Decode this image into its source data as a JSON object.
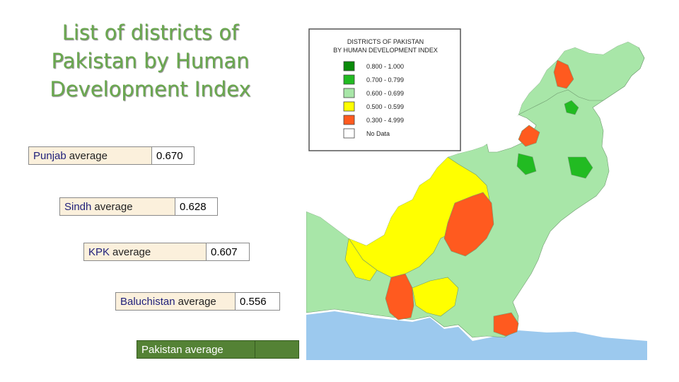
{
  "title_lines": [
    "List of districts of",
    "Pakistan by Human",
    "Development Index"
  ],
  "stats": [
    {
      "name": "Punjab",
      "suffix": "average",
      "value": "0.670"
    },
    {
      "name": "Sindh",
      "suffix": "average",
      "value": "0.628"
    },
    {
      "name": "KPK",
      "suffix": "average",
      "value": "0.607"
    },
    {
      "name": "Baluchistan",
      "suffix": "average",
      "value": "0.556"
    },
    {
      "name": "Pakistan",
      "suffix": "average",
      "value": ""
    }
  ],
  "map": {
    "legend_title_line1": "DISTRICTS OF PAKISTAN",
    "legend_title_line2": "BY HUMAN DEVELOPMENT INDEX",
    "legend": [
      {
        "label": "0.800 - 1.000",
        "color": "#0a8a0a"
      },
      {
        "label": "0.700 - 0.799",
        "color": "#22bb22"
      },
      {
        "label": "0.600 - 0.699",
        "color": "#a8e6a8"
      },
      {
        "label": "0.500 - 0.599",
        "color": "#ffff00"
      },
      {
        "label": "0.300 - 4.999",
        "color": "#ff5a1f"
      },
      {
        "label": "No Data",
        "color": "#ffffff"
      }
    ],
    "sea_color": "#9cc9ee"
  }
}
